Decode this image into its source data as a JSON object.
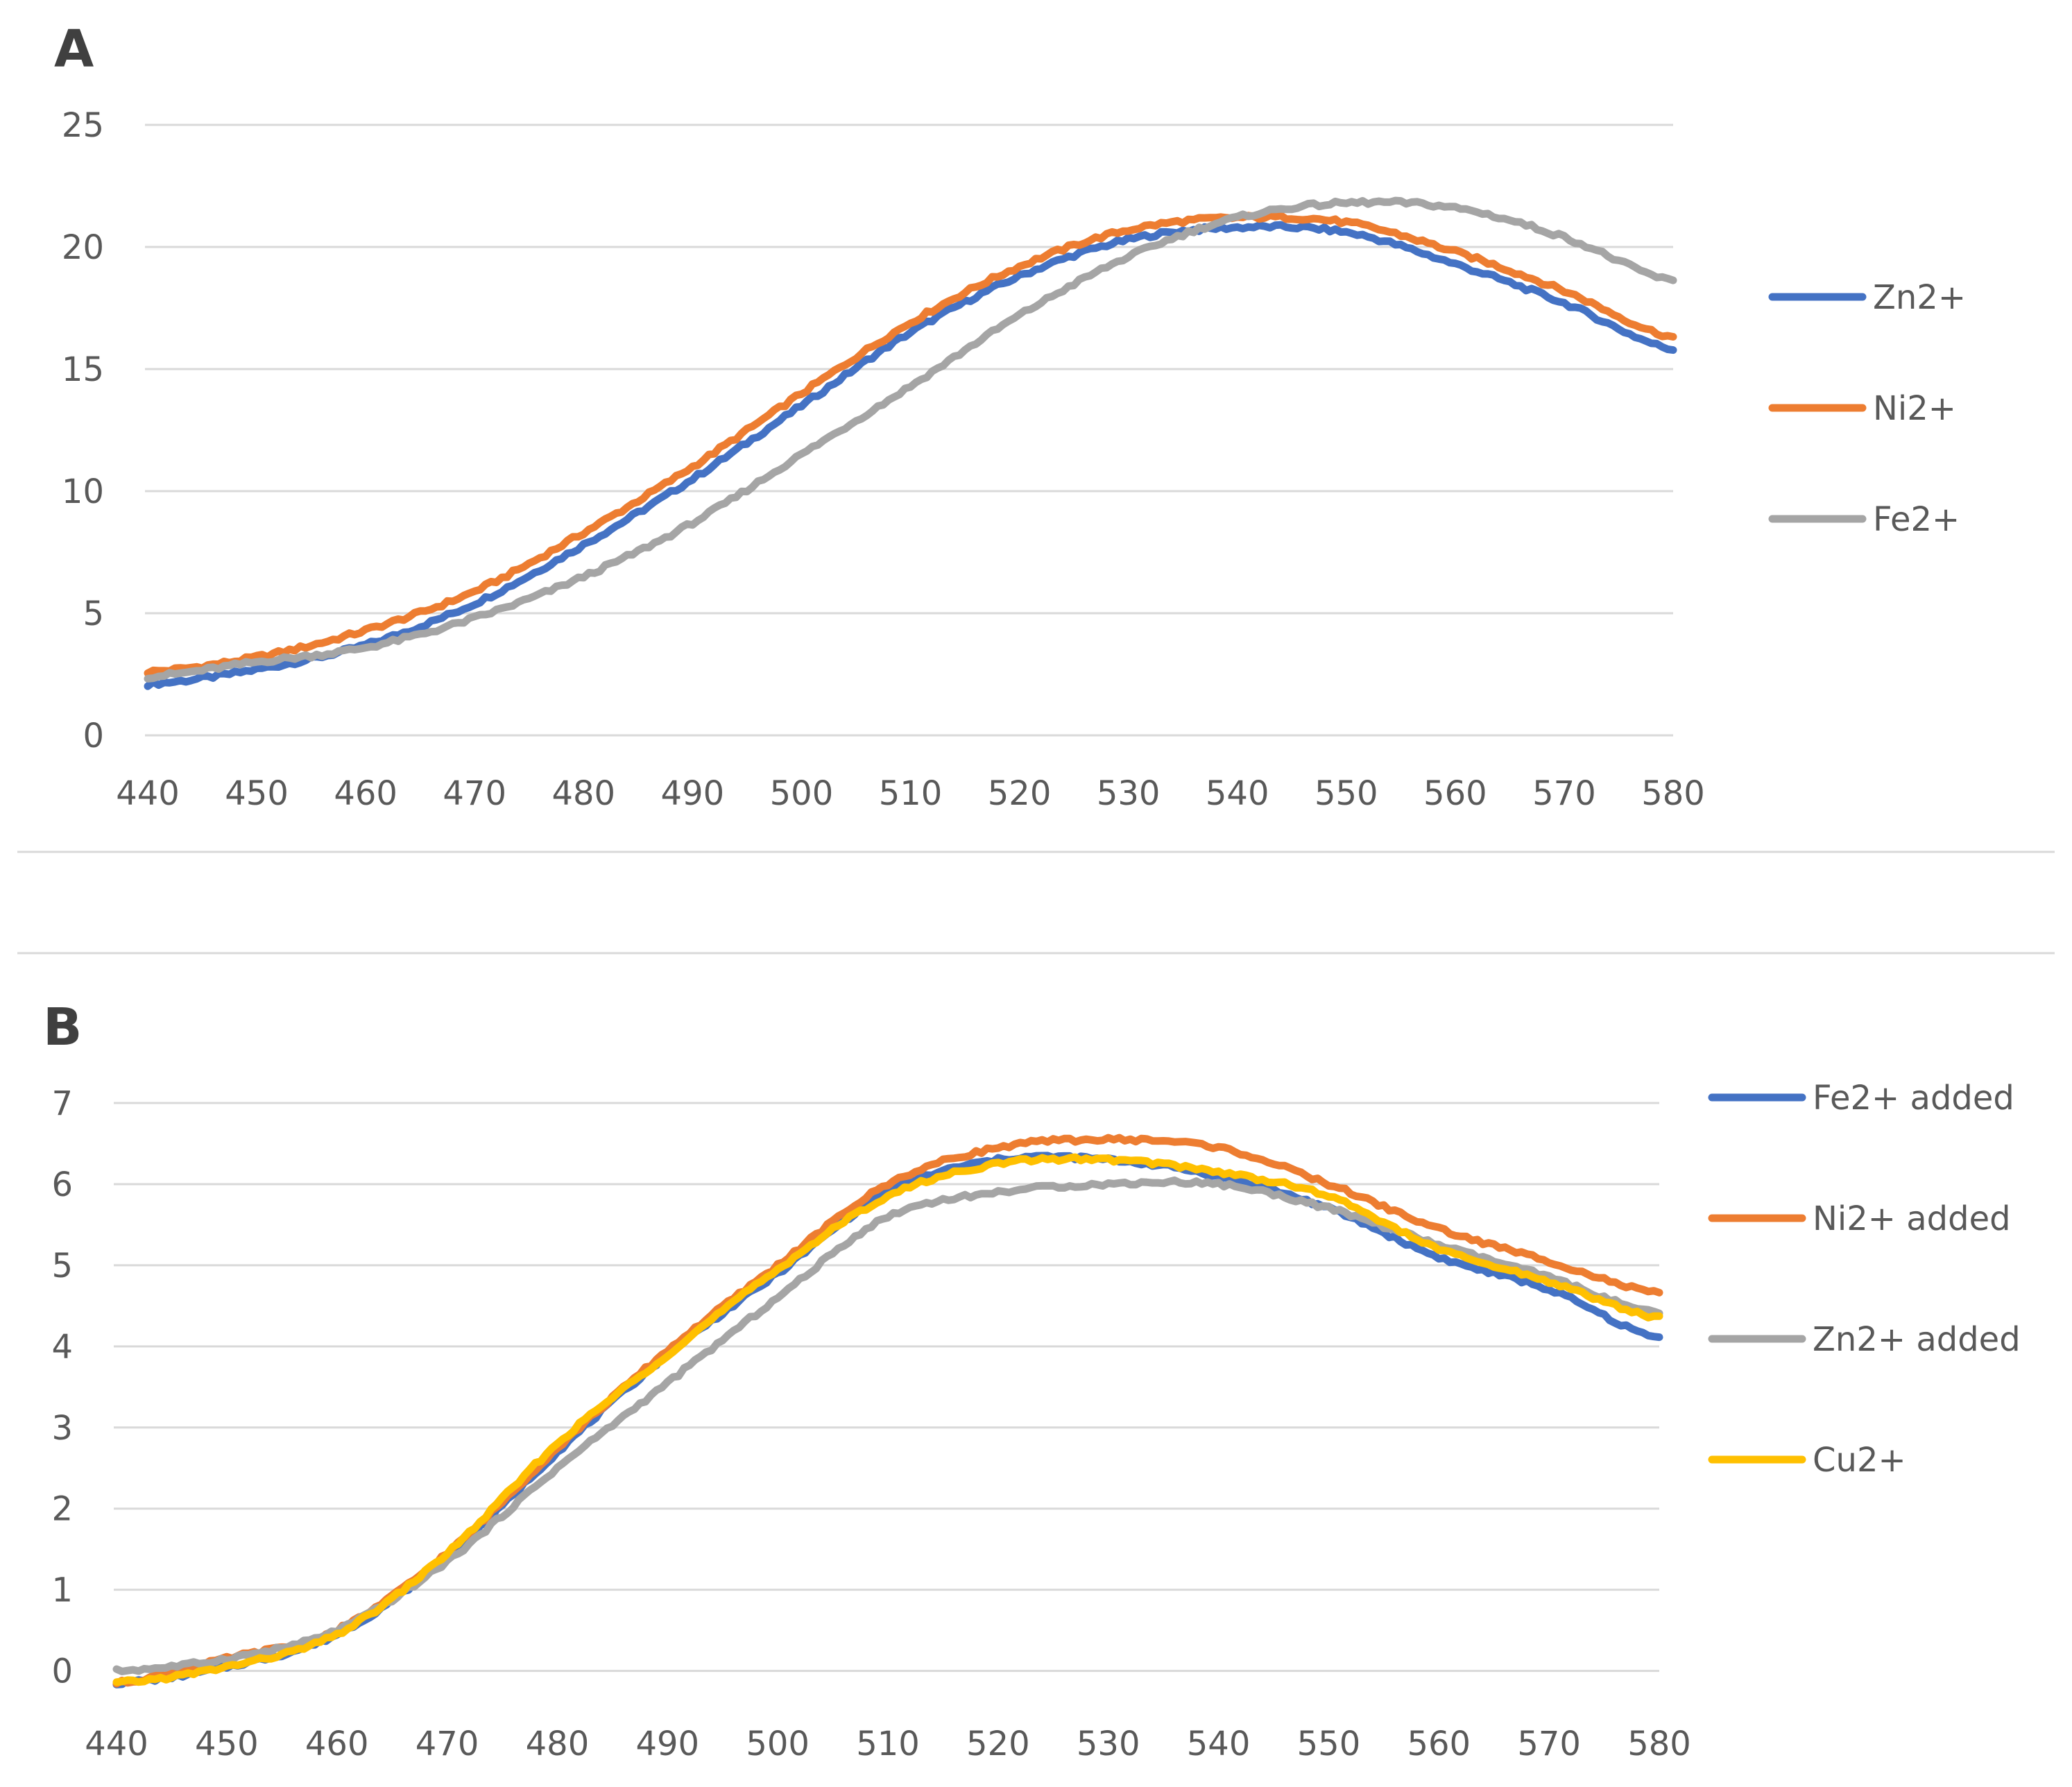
{
  "chart_data": [
    {
      "panel": "A",
      "type": "line",
      "x": [
        440,
        450,
        460,
        470,
        480,
        490,
        500,
        510,
        520,
        530,
        540,
        550,
        560,
        570,
        580
      ],
      "xticks": [
        "440",
        "450",
        "460",
        "470",
        "480",
        "490",
        "500",
        "510",
        "520",
        "530",
        "540",
        "550",
        "560",
        "570",
        "580"
      ],
      "xlim": [
        440,
        580
      ],
      "yticks": [
        "0",
        "5",
        "10",
        "15",
        "20",
        "25"
      ],
      "ylim": [
        0,
        25
      ],
      "grid": true,
      "legend": "right",
      "series": [
        {
          "name": "Zn2+",
          "color": "#4472c4",
          "values": [
            2.1,
            2.7,
            3.7,
            5.4,
            7.8,
            10.5,
            13.5,
            16.5,
            18.8,
            20.3,
            20.8,
            20.6,
            19.3,
            17.7,
            15.8
          ]
        },
        {
          "name": "Ni2+",
          "color": "#ed7d31",
          "values": [
            2.6,
            3.2,
            4.3,
            5.9,
            8.3,
            11.0,
            14.0,
            16.9,
            19.2,
            20.7,
            21.2,
            21.0,
            19.8,
            18.2,
            16.3
          ]
        },
        {
          "name": "Fe2+",
          "color": "#a5a5a5",
          "values": [
            2.4,
            3.0,
            3.6,
            4.8,
            6.5,
            8.7,
            11.5,
            14.3,
            17.2,
            19.6,
            21.2,
            21.8,
            21.6,
            20.4,
            18.6
          ]
        }
      ]
    },
    {
      "panel": "B",
      "type": "line",
      "x": [
        440,
        450,
        460,
        470,
        480,
        490,
        500,
        510,
        520,
        530,
        540,
        550,
        560,
        570,
        580
      ],
      "xticks": [
        "440",
        "450",
        "460",
        "470",
        "480",
        "490",
        "500",
        "510",
        "520",
        "530",
        "540",
        "550",
        "560",
        "570",
        "580"
      ],
      "xlim": [
        440,
        580
      ],
      "yticks": [
        "0",
        "1",
        "2",
        "3",
        "4",
        "5",
        "6",
        "7"
      ],
      "ylim": [
        -0.2,
        7
      ],
      "grid": true,
      "legend": "right",
      "series": [
        {
          "name": "Fe2+ added",
          "color": "#4472c4",
          "values": [
            -0.15,
            0.05,
            0.45,
            1.4,
            2.7,
            3.9,
            4.9,
            5.9,
            6.3,
            6.3,
            6.1,
            5.7,
            5.1,
            4.7,
            4.1
          ]
        },
        {
          "name": "Ni2+ added",
          "color": "#ed7d31",
          "values": [
            -0.15,
            0.15,
            0.5,
            1.45,
            2.75,
            3.95,
            5.0,
            6.0,
            6.45,
            6.55,
            6.45,
            6.0,
            5.45,
            5.05,
            4.65
          ]
        },
        {
          "name": "Zn2+ added",
          "color": "#a5a5a5",
          "values": [
            0.0,
            0.15,
            0.5,
            1.35,
            2.5,
            3.55,
            4.6,
            5.6,
            5.9,
            6.0,
            6.0,
            5.7,
            5.25,
            4.85,
            4.4
          ]
        },
        {
          "name": "Cu2+",
          "color": "#ffc000",
          "values": [
            -0.15,
            0.05,
            0.45,
            1.45,
            2.8,
            3.9,
            4.95,
            5.85,
            6.25,
            6.3,
            6.15,
            5.85,
            5.2,
            4.8,
            4.35
          ]
        }
      ]
    }
  ]
}
